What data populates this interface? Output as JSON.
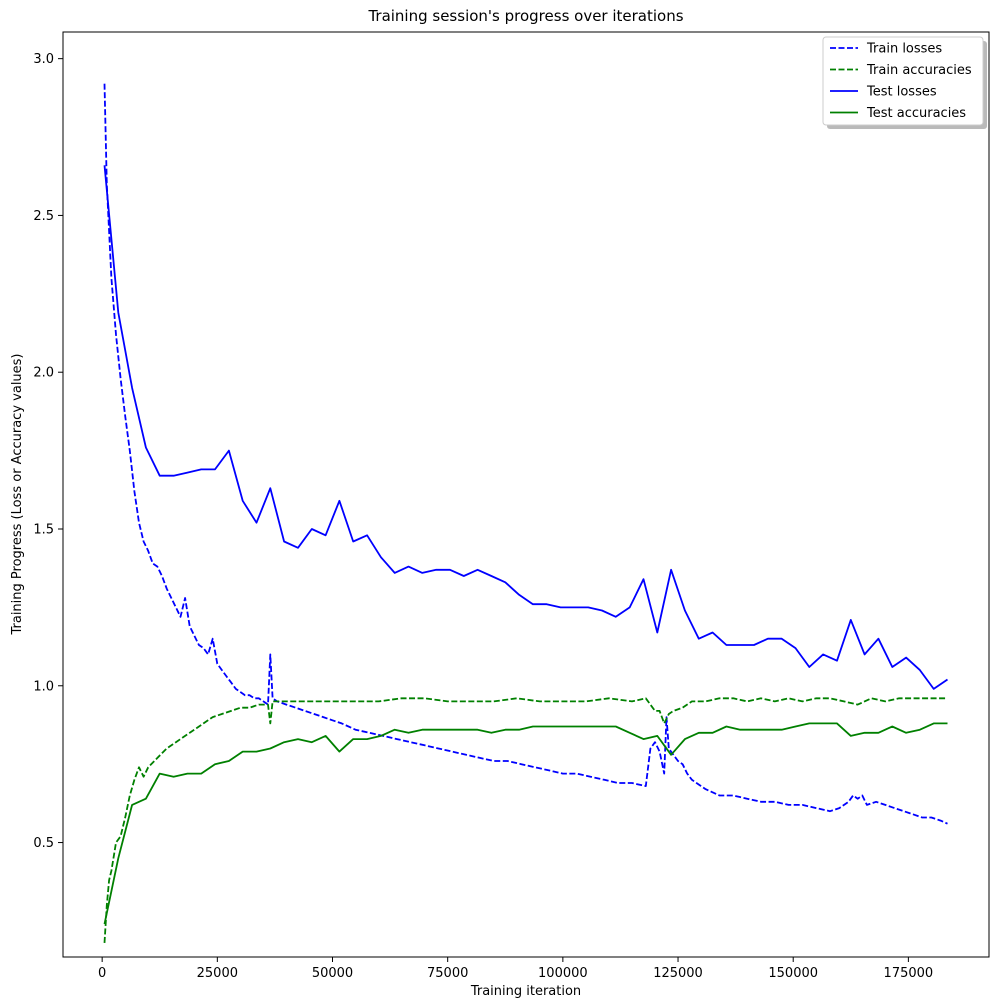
{
  "chart_data": {
    "type": "line",
    "title": "Training session's progress over iterations",
    "xlabel": "Training iteration",
    "ylabel": "Training Progress (Loss or Accuracy values)",
    "xlim": [
      -8500,
      192500
    ],
    "ylim": [
      0.135,
      3.085
    ],
    "xticks": [
      0,
      25000,
      50000,
      75000,
      100000,
      125000,
      150000,
      175000
    ],
    "xtick_labels": [
      "0",
      "25000",
      "50000",
      "75000",
      "100000",
      "125000",
      "150000",
      "175000"
    ],
    "yticks": [
      0.5,
      1.0,
      1.5,
      2.0,
      2.5,
      3.0
    ],
    "ytick_labels": [
      "0.5",
      "1.0",
      "1.5",
      "2.0",
      "2.5",
      "3.0"
    ],
    "grid": false,
    "legend_position": "top-right",
    "series": [
      {
        "name": "Train losses",
        "color": "#0000ff",
        "style": "dashed",
        "x": [
          500,
          1000,
          1500,
          2000,
          3000,
          4000,
          5000,
          6000,
          7000,
          8000,
          9000,
          10000,
          11000,
          12000,
          13000,
          14000,
          15000,
          16000,
          17000,
          18000,
          19000,
          20000,
          21000,
          22000,
          23000,
          24000,
          25000,
          26000,
          27000,
          28000,
          29000,
          30000,
          31000,
          32000,
          33000,
          34000,
          35000,
          36000,
          36500,
          37000,
          38000,
          40000,
          42000,
          44000,
          46000,
          48000,
          50000,
          52000,
          55000,
          58000,
          61000,
          64000,
          67000,
          70000,
          73000,
          76000,
          79000,
          82000,
          85000,
          88000,
          91000,
          94000,
          97000,
          100000,
          103000,
          106000,
          109000,
          112000,
          115000,
          118000,
          119000,
          120000,
          121000,
          122000,
          122500,
          123000,
          124000,
          125000,
          126000,
          127000,
          128000,
          129000,
          131000,
          134000,
          137000,
          140000,
          143000,
          146000,
          149000,
          152000,
          155000,
          158000,
          160000,
          162000,
          163000,
          164000,
          165000,
          166000,
          168000,
          170000,
          172000,
          174000,
          176000,
          178000,
          180000,
          182000,
          183500
        ],
        "values": [
          2.92,
          2.6,
          2.45,
          2.3,
          2.12,
          1.98,
          1.86,
          1.75,
          1.62,
          1.52,
          1.46,
          1.43,
          1.39,
          1.38,
          1.35,
          1.31,
          1.28,
          1.25,
          1.22,
          1.28,
          1.19,
          1.16,
          1.13,
          1.12,
          1.1,
          1.15,
          1.07,
          1.05,
          1.03,
          1.01,
          0.99,
          0.98,
          0.97,
          0.97,
          0.96,
          0.96,
          0.95,
          0.94,
          1.1,
          0.96,
          0.95,
          0.94,
          0.93,
          0.92,
          0.91,
          0.9,
          0.89,
          0.88,
          0.86,
          0.85,
          0.84,
          0.83,
          0.82,
          0.81,
          0.8,
          0.79,
          0.78,
          0.77,
          0.76,
          0.76,
          0.75,
          0.74,
          0.73,
          0.72,
          0.72,
          0.71,
          0.7,
          0.69,
          0.69,
          0.68,
          0.8,
          0.82,
          0.79,
          0.72,
          0.9,
          0.8,
          0.78,
          0.76,
          0.75,
          0.72,
          0.7,
          0.69,
          0.67,
          0.65,
          0.65,
          0.64,
          0.63,
          0.63,
          0.62,
          0.62,
          0.61,
          0.6,
          0.61,
          0.63,
          0.65,
          0.64,
          0.65,
          0.62,
          0.63,
          0.62,
          0.61,
          0.6,
          0.59,
          0.58,
          0.58,
          0.57,
          0.56
        ]
      },
      {
        "name": "Train accuracies",
        "color": "#008000",
        "style": "dashed",
        "x": [
          500,
          1000,
          1500,
          2000,
          3000,
          4000,
          5000,
          6000,
          7000,
          8000,
          9000,
          10000,
          12000,
          14000,
          16000,
          18000,
          20000,
          22000,
          24000,
          26000,
          28000,
          30000,
          32000,
          34000,
          36000,
          36500,
          37000,
          38000,
          40000,
          43000,
          46000,
          50000,
          55000,
          60000,
          65000,
          70000,
          75000,
          80000,
          85000,
          90000,
          95000,
          100000,
          105000,
          110000,
          115000,
          118000,
          120000,
          121000,
          122000,
          123000,
          124000,
          126000,
          128000,
          131000,
          134000,
          137000,
          140000,
          143000,
          146000,
          149000,
          152000,
          155000,
          158000,
          161000,
          164000,
          167000,
          170000,
          173000,
          176000,
          179000,
          182000,
          183500
        ],
        "values": [
          0.18,
          0.3,
          0.38,
          0.41,
          0.5,
          0.52,
          0.58,
          0.65,
          0.7,
          0.74,
          0.71,
          0.74,
          0.77,
          0.8,
          0.82,
          0.84,
          0.86,
          0.88,
          0.9,
          0.91,
          0.92,
          0.93,
          0.93,
          0.94,
          0.94,
          0.88,
          0.95,
          0.95,
          0.95,
          0.95,
          0.95,
          0.95,
          0.95,
          0.95,
          0.96,
          0.96,
          0.95,
          0.95,
          0.95,
          0.96,
          0.95,
          0.95,
          0.95,
          0.96,
          0.95,
          0.96,
          0.92,
          0.92,
          0.88,
          0.91,
          0.92,
          0.93,
          0.95,
          0.95,
          0.96,
          0.96,
          0.95,
          0.96,
          0.95,
          0.96,
          0.95,
          0.96,
          0.96,
          0.95,
          0.94,
          0.96,
          0.95,
          0.96,
          0.96,
          0.96,
          0.96,
          0.96
        ]
      },
      {
        "name": "Test losses",
        "color": "#0000ff",
        "style": "solid",
        "x": [
          500,
          3500,
          6500,
          9500,
          12500,
          15500,
          18500,
          21500,
          24500,
          27500,
          30500,
          33500,
          36500,
          39500,
          42500,
          45500,
          48500,
          51500,
          54500,
          57500,
          60500,
          63500,
          66500,
          69500,
          72500,
          75500,
          78500,
          81500,
          84500,
          87500,
          90500,
          93500,
          96500,
          99500,
          102500,
          105500,
          108500,
          111500,
          114500,
          117500,
          120500,
          123500,
          126500,
          129500,
          132500,
          135500,
          138500,
          141500,
          144500,
          147500,
          150500,
          153500,
          156500,
          159500,
          162500,
          165500,
          168500,
          171500,
          174500,
          177500,
          180500,
          183500
        ],
        "values": [
          2.66,
          2.19,
          1.95,
          1.76,
          1.67,
          1.67,
          1.68,
          1.69,
          1.69,
          1.75,
          1.59,
          1.52,
          1.63,
          1.46,
          1.44,
          1.5,
          1.48,
          1.59,
          1.46,
          1.48,
          1.41,
          1.36,
          1.38,
          1.36,
          1.37,
          1.37,
          1.35,
          1.37,
          1.35,
          1.33,
          1.29,
          1.26,
          1.26,
          1.25,
          1.25,
          1.25,
          1.24,
          1.22,
          1.25,
          1.34,
          1.17,
          1.37,
          1.24,
          1.15,
          1.17,
          1.13,
          1.13,
          1.13,
          1.15,
          1.15,
          1.12,
          1.06,
          1.1,
          1.08,
          1.21,
          1.1,
          1.15,
          1.06,
          1.09,
          1.05,
          0.99,
          1.02
        ]
      },
      {
        "name": "Test accuracies",
        "color": "#008000",
        "style": "solid",
        "x": [
          500,
          3500,
          6500,
          9500,
          12500,
          15500,
          18500,
          21500,
          24500,
          27500,
          30500,
          33500,
          36500,
          39500,
          42500,
          45500,
          48500,
          51500,
          54500,
          57500,
          60500,
          63500,
          66500,
          69500,
          72500,
          75500,
          78500,
          81500,
          84500,
          87500,
          90500,
          93500,
          96500,
          99500,
          102500,
          105500,
          108500,
          111500,
          114500,
          117500,
          120500,
          123500,
          126500,
          129500,
          132500,
          135500,
          138500,
          141500,
          144500,
          147500,
          150500,
          153500,
          156500,
          159500,
          162500,
          165500,
          168500,
          171500,
          174500,
          177500,
          180500,
          183500
        ],
        "values": [
          0.24,
          0.45,
          0.62,
          0.64,
          0.72,
          0.71,
          0.72,
          0.72,
          0.75,
          0.76,
          0.79,
          0.79,
          0.8,
          0.82,
          0.83,
          0.82,
          0.84,
          0.79,
          0.83,
          0.83,
          0.84,
          0.86,
          0.85,
          0.86,
          0.86,
          0.86,
          0.86,
          0.86,
          0.85,
          0.86,
          0.86,
          0.87,
          0.87,
          0.87,
          0.87,
          0.87,
          0.87,
          0.87,
          0.85,
          0.83,
          0.84,
          0.78,
          0.83,
          0.85,
          0.85,
          0.87,
          0.86,
          0.86,
          0.86,
          0.86,
          0.87,
          0.88,
          0.88,
          0.88,
          0.84,
          0.85,
          0.85,
          0.87,
          0.85,
          0.86,
          0.88,
          0.88
        ]
      }
    ]
  }
}
